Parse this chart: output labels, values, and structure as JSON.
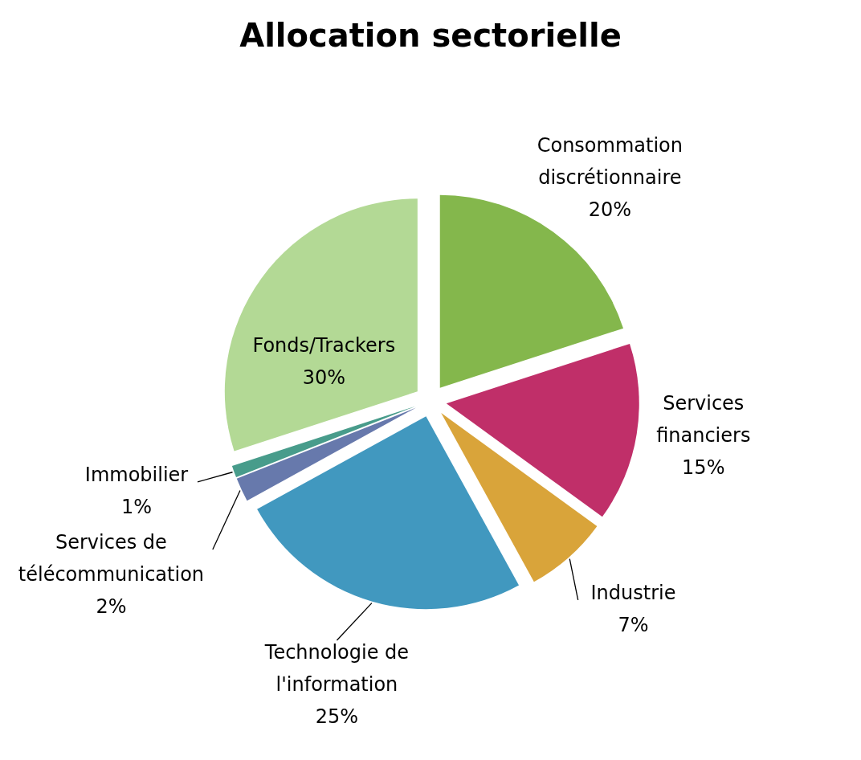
{
  "chart_data": {
    "type": "pie",
    "title": "Allocation sectorielle",
    "categories": [
      "Consommation discrétionnaire",
      "Services financiers",
      "Industrie",
      "Technologie de l'information",
      "Services de télécommunication",
      "Immobilier",
      "Fonds/Trackers"
    ],
    "values": [
      20,
      15,
      7,
      25,
      2,
      1,
      30
    ],
    "colors": [
      "#84b74c",
      "#c02f69",
      "#d9a43a",
      "#4198bf",
      "#6779ac",
      "#489c8b",
      "#b3d995"
    ],
    "value_labels": [
      "20%",
      "15%",
      "7%",
      "25%",
      "2%",
      "1%",
      "30%"
    ],
    "legend": false
  }
}
